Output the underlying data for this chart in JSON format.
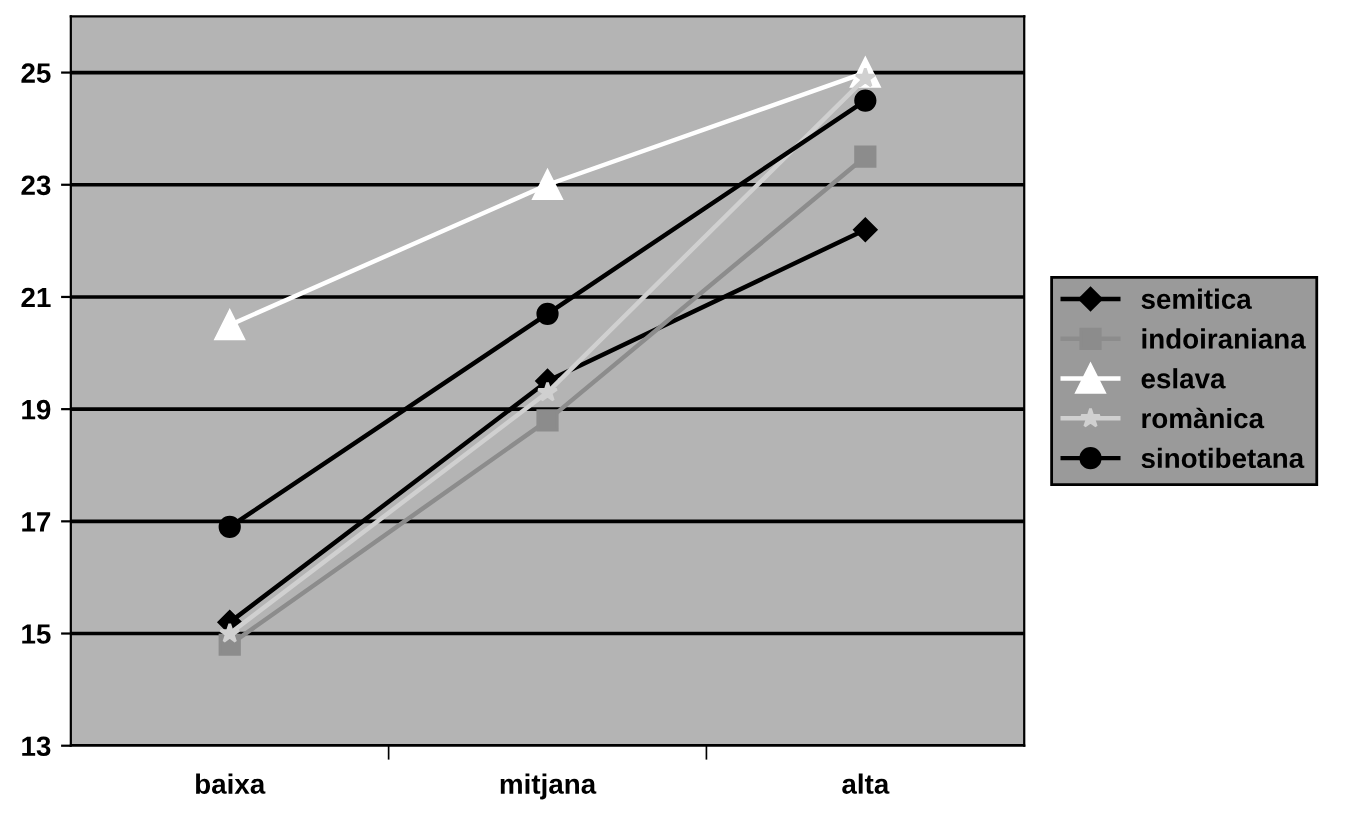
{
  "chart_data": {
    "type": "line",
    "categories": [
      "baixa",
      "mitjana",
      "alta"
    ],
    "series": [
      {
        "name": "semitica",
        "color": "#000000",
        "marker": "diamond",
        "values": [
          15.2,
          19.5,
          22.2
        ]
      },
      {
        "name": "indoiraniana",
        "color": "#8c8c8c",
        "marker": "square",
        "values": [
          14.8,
          18.8,
          23.5
        ]
      },
      {
        "name": "eslava",
        "color": "#ffffff",
        "marker": "triangle",
        "values": [
          20.5,
          23.0,
          25.0
        ]
      },
      {
        "name": "romànica",
        "color": "#d0d0d0",
        "marker": "star",
        "values": [
          15.0,
          19.3,
          24.9
        ]
      },
      {
        "name": "sinotibetana",
        "color": "#000000",
        "marker": "circle",
        "values": [
          16.9,
          20.7,
          24.5
        ]
      }
    ],
    "ylim": [
      13,
      26
    ],
    "yticks": [
      13,
      15,
      17,
      19,
      21,
      23,
      25
    ],
    "grid": "y",
    "legend": "right"
  }
}
